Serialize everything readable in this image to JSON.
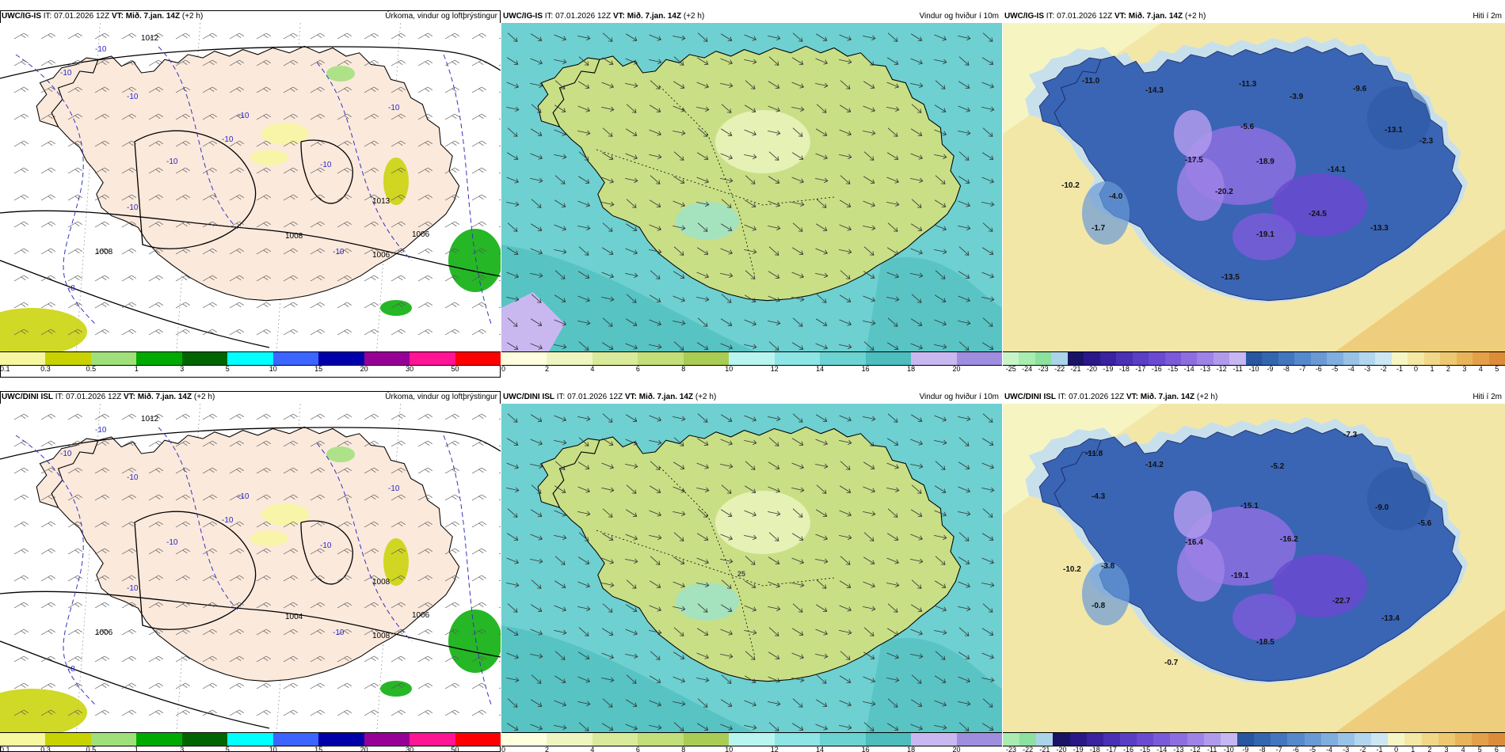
{
  "rows": [
    {
      "model": "UWC/IG-IS",
      "init": "IT: 07.01.2026 12Z",
      "valid_label": "VT:",
      "valid": "Mið. 7.jan. 14Z",
      "lead": "(+2 h)",
      "panels": [
        {
          "product": "Úrkoma, vindur og loftþrýstingur",
          "legend": [
            "0.1",
            "0.3",
            "0.5",
            "1",
            "3",
            "5",
            "10",
            "15",
            "20",
            "30",
            "50"
          ],
          "pressure_labels": [
            "1012",
            "1013",
            "1008",
            "1006",
            "1006",
            "1008"
          ],
          "temp_labels": [
            "-10",
            "-10",
            "-10",
            "-10",
            "-10",
            "-10",
            "-10",
            "-10",
            "-10",
            "-10",
            "-8"
          ]
        },
        {
          "product": "Vindur og hviður í 10m",
          "legend": [
            "0",
            "2",
            "4",
            "6",
            "8",
            "10",
            "12",
            "14",
            "16",
            "18",
            "20"
          ],
          "gust_labels": []
        },
        {
          "product": "Hiti í 2m",
          "legend": [
            "-25",
            "-24",
            "-23",
            "-22",
            "-21",
            "-20",
            "-19",
            "-18",
            "-17",
            "-16",
            "-15",
            "-14",
            "-13",
            "-12",
            "-11",
            "-10",
            "-9",
            "-8",
            "-7",
            "-6",
            "-5",
            "-4",
            "-3",
            "-2",
            "-1",
            "0",
            "1",
            "2",
            "3",
            "4",
            "5"
          ],
          "temp_values": [
            "-11.0",
            "-14.3",
            "-11.3",
            "-3.9",
            "-9.6",
            "-5.6",
            "-13.1",
            "-2.3",
            "-17.5",
            "-18.9",
            "-14.1",
            "-10.2",
            "-4.0",
            "-20.2",
            "-24.5",
            "-1.7",
            "-19.1",
            "-13.3",
            "-13.5"
          ]
        }
      ]
    },
    {
      "model": "UWC/DINI ISL",
      "init": "IT: 07.01.2026 12Z",
      "valid_label": "VT:",
      "valid": "Mið. 7.jan. 14Z",
      "lead": "(+2 h)",
      "panels": [
        {
          "product": "Úrkoma, vindur og loftþrýstingur",
          "legend": [
            "0.1",
            "0.3",
            "0.5",
            "1",
            "3",
            "5",
            "10",
            "15",
            "20",
            "30",
            "50"
          ],
          "pressure_labels": [
            "1012",
            "1008",
            "1006",
            "1008",
            "1006",
            "1004"
          ],
          "temp_labels": [
            "-10",
            "-10",
            "-10",
            "-10",
            "-10",
            "-10",
            "-10",
            "-10",
            "-10",
            "-10",
            "-8"
          ]
        },
        {
          "product": "Vindur og hviður í 10m",
          "legend": [
            "0",
            "2",
            "4",
            "6",
            "8",
            "10",
            "12",
            "14",
            "16",
            "18",
            "20"
          ],
          "gust_labels": [
            "25"
          ]
        },
        {
          "product": "Hiti í 2m",
          "legend": [
            "-23",
            "-22",
            "-21",
            "-20",
            "-19",
            "-18",
            "-17",
            "-16",
            "-15",
            "-14",
            "-13",
            "-12",
            "-11",
            "-10",
            "-9",
            "-8",
            "-7",
            "-6",
            "-5",
            "-4",
            "-3",
            "-2",
            "-1",
            "0",
            "1",
            "2",
            "3",
            "4",
            "5",
            "6"
          ],
          "temp_values": [
            "-11.8",
            "-14.2",
            "-7.3",
            "-5.2",
            "-4.3",
            "-15.1",
            "-9.0",
            "-5.6",
            "-16.4",
            "-16.2",
            "-10.2",
            "-3.8",
            "-19.1",
            "-0.8",
            "-22.7",
            "-13.4",
            "-18.5",
            "-0.7"
          ]
        }
      ]
    }
  ],
  "colors": {
    "precip_scale": [
      "#f7f7a0",
      "#c8d200",
      "#a0e07a",
      "#00aa00",
      "#006400",
      "#00ffff",
      "#3c64ff",
      "#0000aa",
      "#960096",
      "#ff1493",
      "#ff0000"
    ],
    "wind_scale": [
      "#ffffe0",
      "#eef5c0",
      "#d9ea9a",
      "#c2df7a",
      "#a9cc55",
      "#b9f5f0",
      "#8ee5e5",
      "#6cd3d3",
      "#4dbdbd",
      "#c9b8f0",
      "#9f8de0"
    ],
    "temp_scale_row1": [
      "#c8f5c8",
      "#a8ecb0",
      "#8ce0a0",
      "#aad4e8",
      "#1a1466",
      "#2a1888",
      "#3a22a0",
      "#4a30b4",
      "#5a3ec4",
      "#6a4ad0",
      "#7a5ad8",
      "#8c6ee0",
      "#9e82e6",
      "#b09aec",
      "#c6b6f2",
      "#2856a0",
      "#3466b0",
      "#4476c0",
      "#5688cc",
      "#6a9ad6",
      "#80aede",
      "#98c2e6",
      "#b2d6ee",
      "#cce6f4",
      "#f6f6c4",
      "#f4e8a4",
      "#f0d888",
      "#ecc870",
      "#e8b45a",
      "#e4a048",
      "#dc8c38"
    ],
    "temp_scale_row2": [
      "#a8ecb0",
      "#8ce0a0",
      "#aad4e8",
      "#1a1466",
      "#2a1888",
      "#3a22a0",
      "#4a30b4",
      "#5a3ec4",
      "#6a4ad0",
      "#7a5ad8",
      "#8c6ee0",
      "#9e82e6",
      "#b09aec",
      "#c6b6f2",
      "#2856a0",
      "#3466b0",
      "#4476c0",
      "#5688cc",
      "#6a9ad6",
      "#80aede",
      "#98c2e6",
      "#b2d6ee",
      "#cce6f4",
      "#f6f6c4",
      "#f4e8a4",
      "#f0d888",
      "#ecc870",
      "#e8b45a",
      "#e4a048",
      "#dc8c38"
    ],
    "land_precip": "#fbe9dc",
    "sea_precip": "#ffffff",
    "land_wind": "#c9df86",
    "sea_wind": "#6ed0d0",
    "sea_temp": "#f3e7a8",
    "coast_temp": "#c8e0ec",
    "land_temp": "#3a64b4"
  }
}
